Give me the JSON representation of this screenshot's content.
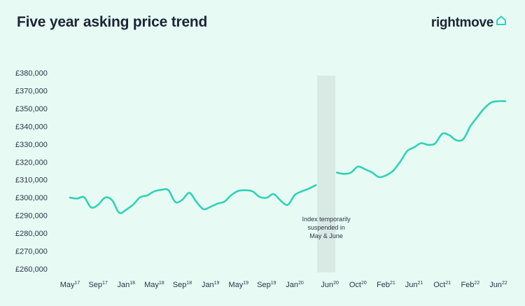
{
  "header": {
    "title": "Five year asking price trend",
    "brand": "rightmove",
    "brand_icon": "house-outline-icon"
  },
  "colors": {
    "background": "#e7fbf4",
    "line": "#2ed3b5",
    "band": "#d9e9e4",
    "text": "#1c2536"
  },
  "chart_data": {
    "type": "line",
    "title": "Five year asking price trend",
    "xlabel": "",
    "ylabel": "",
    "ylim": [
      260000,
      380000
    ],
    "yticks": [
      {
        "value": 380000,
        "label": "£380,000"
      },
      {
        "value": 370000,
        "label": "£370,000"
      },
      {
        "value": 350000,
        "label": "£350,000"
      },
      {
        "value": 340000,
        "label": "£340,000"
      },
      {
        "value": 330000,
        "label": "£330,000"
      },
      {
        "value": 320000,
        "label": "£320,000"
      },
      {
        "value": 310000,
        "label": "£310,000"
      },
      {
        "value": 300000,
        "label": "£300,000"
      },
      {
        "value": 290000,
        "label": "£290,000"
      },
      {
        "value": 280000,
        "label": "£280,000"
      },
      {
        "value": 270000,
        "label": "£270,000"
      },
      {
        "value": 260000,
        "label": "£260,000"
      }
    ],
    "xticks": [
      {
        "month": "May",
        "year": "17"
      },
      {
        "month": "Sep",
        "year": "17"
      },
      {
        "month": "Jan",
        "year": "18"
      },
      {
        "month": "May",
        "year": "18"
      },
      {
        "month": "Sep",
        "year": "18"
      },
      {
        "month": "Jan",
        "year": "19"
      },
      {
        "month": "May",
        "year": "19"
      },
      {
        "month": "Sep",
        "year": "19"
      },
      {
        "month": "Jan",
        "year": "20"
      },
      {
        "month": "Jun",
        "year": "20"
      },
      {
        "month": "Oct",
        "year": "20"
      },
      {
        "month": "Feb",
        "year": "21"
      },
      {
        "month": "Jun",
        "year": "21"
      },
      {
        "month": "Oct",
        "year": "21"
      },
      {
        "month": "Feb",
        "year": "22"
      },
      {
        "month": "Jun",
        "year": "22"
      }
    ],
    "segments": [
      {
        "x": [
          "2017-05",
          "2017-06",
          "2017-07",
          "2017-08",
          "2017-09",
          "2017-10",
          "2017-11",
          "2017-12",
          "2018-01",
          "2018-02",
          "2018-03",
          "2018-04",
          "2018-05",
          "2018-06",
          "2018-07",
          "2018-08",
          "2018-09",
          "2018-10",
          "2018-11",
          "2018-12",
          "2019-01",
          "2019-02",
          "2019-03",
          "2019-04",
          "2019-05",
          "2019-06",
          "2019-07",
          "2019-08",
          "2019-09",
          "2019-10",
          "2019-11",
          "2019-12",
          "2020-01",
          "2020-02",
          "2020-03",
          "2020-04"
        ],
        "y": [
          300000,
          299500,
          300200,
          294500,
          296000,
          300000,
          298500,
          291500,
          293200,
          296100,
          300200,
          301200,
          303500,
          304300,
          304200,
          297500,
          298800,
          302700,
          297600,
          293500,
          294800,
          296600,
          297800,
          301500,
          303800,
          304100,
          303500,
          300400,
          299900,
          302000,
          298300,
          295900,
          301400,
          303500,
          305000,
          307000
        ]
      },
      {
        "x": [
          "2020-07",
          "2020-08",
          "2020-09",
          "2020-10",
          "2020-11",
          "2020-12",
          "2021-01",
          "2021-02",
          "2021-03",
          "2021-04",
          "2021-05",
          "2021-06",
          "2021-07",
          "2021-08",
          "2021-09",
          "2021-10",
          "2021-11",
          "2021-12",
          "2022-01",
          "2022-02",
          "2022-03",
          "2022-04",
          "2022-05",
          "2022-06",
          "2022-07"
        ],
        "y": [
          314000,
          313300,
          314000,
          317400,
          315900,
          314100,
          311500,
          312500,
          315000,
          320000,
          326000,
          328200,
          330500,
          329600,
          330400,
          335800,
          335000,
          332200,
          332800,
          340000,
          345200,
          350200,
          356800,
          358200,
          358200
        ]
      }
    ],
    "suspended_range": [
      "2020-05",
      "2020-06"
    ],
    "annotation": [
      "Index temporarily",
      "suspended in",
      "May & June"
    ],
    "grid": false,
    "legend": "none"
  }
}
